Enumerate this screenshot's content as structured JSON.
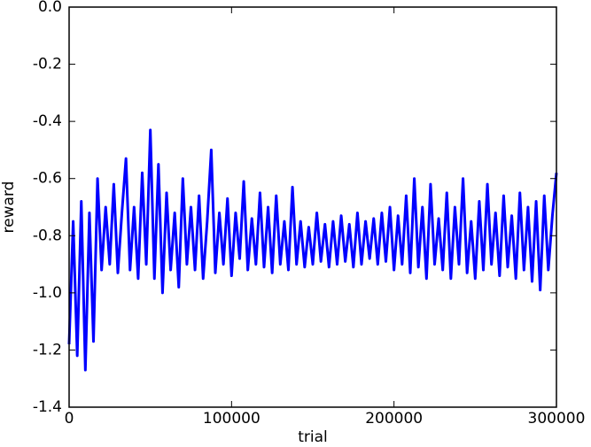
{
  "chart_data": {
    "type": "line",
    "x_label": "trial",
    "y_label": "reward",
    "color": "#0000ff",
    "xlim": [
      0,
      300000
    ],
    "xticks": [
      0,
      100000,
      200000,
      300000
    ],
    "ylim": [
      -1.4,
      0
    ],
    "yticks": [
      {
        "value": 0,
        "label": "0.0"
      },
      -0.2,
      -0.4,
      -0.6,
      -0.8,
      {
        "value": -1,
        "label": "-1.0"
      },
      -1.2,
      -1.4
    ],
    "x": [
      0,
      2500,
      5000,
      7500,
      10000,
      12500,
      15000,
      17500,
      20000,
      22500,
      25000,
      27500,
      30000,
      32500,
      35000,
      37500,
      40000,
      42500,
      45000,
      47500,
      50000,
      52500,
      55000,
      57500,
      60000,
      62500,
      65000,
      67500,
      70000,
      72500,
      75000,
      77500,
      80000,
      82500,
      85000,
      87500,
      90000,
      92500,
      95000,
      97500,
      100000,
      102500,
      105000,
      107500,
      110000,
      112500,
      115000,
      117500,
      120000,
      122500,
      125000,
      127500,
      130000,
      132500,
      135000,
      137500,
      140000,
      142500,
      145000,
      147500,
      150000,
      152500,
      155000,
      157500,
      160000,
      162500,
      165000,
      167500,
      170000,
      172500,
      175000,
      177500,
      180000,
      182500,
      185000,
      187500,
      190000,
      192500,
      195000,
      197500,
      200000,
      202500,
      205000,
      207500,
      210000,
      212500,
      215000,
      217500,
      220000,
      222500,
      225000,
      227500,
      230000,
      232500,
      235000,
      237500,
      240000,
      242500,
      245000,
      247500,
      250000,
      252500,
      255000,
      257500,
      260000,
      262500,
      265000,
      267500,
      270000,
      272500,
      275000,
      277500,
      280000,
      282500,
      285000,
      287500,
      290000,
      292500,
      295000,
      297500,
      300000
    ],
    "values": [
      -1.18,
      -0.75,
      -1.22,
      -0.68,
      -1.27,
      -0.72,
      -1.17,
      -0.6,
      -0.92,
      -0.7,
      -0.9,
      -0.62,
      -0.93,
      -0.72,
      -0.53,
      -0.92,
      -0.7,
      -0.95,
      -0.58,
      -0.9,
      -0.43,
      -0.95,
      -0.55,
      -1.0,
      -0.65,
      -0.92,
      -0.72,
      -0.98,
      -0.6,
      -0.9,
      -0.7,
      -0.92,
      -0.66,
      -0.95,
      -0.75,
      -0.5,
      -0.93,
      -0.72,
      -0.9,
      -0.67,
      -0.94,
      -0.72,
      -0.88,
      -0.61,
      -0.92,
      -0.74,
      -0.9,
      -0.65,
      -0.91,
      -0.7,
      -0.93,
      -0.66,
      -0.9,
      -0.75,
      -0.92,
      -0.63,
      -0.9,
      -0.75,
      -0.91,
      -0.77,
      -0.9,
      -0.72,
      -0.89,
      -0.76,
      -0.91,
      -0.75,
      -0.9,
      -0.73,
      -0.89,
      -0.76,
      -0.91,
      -0.72,
      -0.9,
      -0.75,
      -0.88,
      -0.74,
      -0.9,
      -0.72,
      -0.89,
      -0.7,
      -0.92,
      -0.73,
      -0.9,
      -0.66,
      -0.93,
      -0.6,
      -0.91,
      -0.7,
      -0.95,
      -0.62,
      -0.9,
      -0.74,
      -0.92,
      -0.65,
      -0.95,
      -0.7,
      -0.9,
      -0.6,
      -0.93,
      -0.75,
      -0.95,
      -0.68,
      -0.92,
      -0.62,
      -0.9,
      -0.72,
      -0.94,
      -0.66,
      -0.91,
      -0.73,
      -0.95,
      -0.65,
      -0.92,
      -0.7,
      -0.96,
      -0.68,
      -0.99,
      -0.66,
      -0.92,
      -0.73,
      -0.58
    ]
  }
}
